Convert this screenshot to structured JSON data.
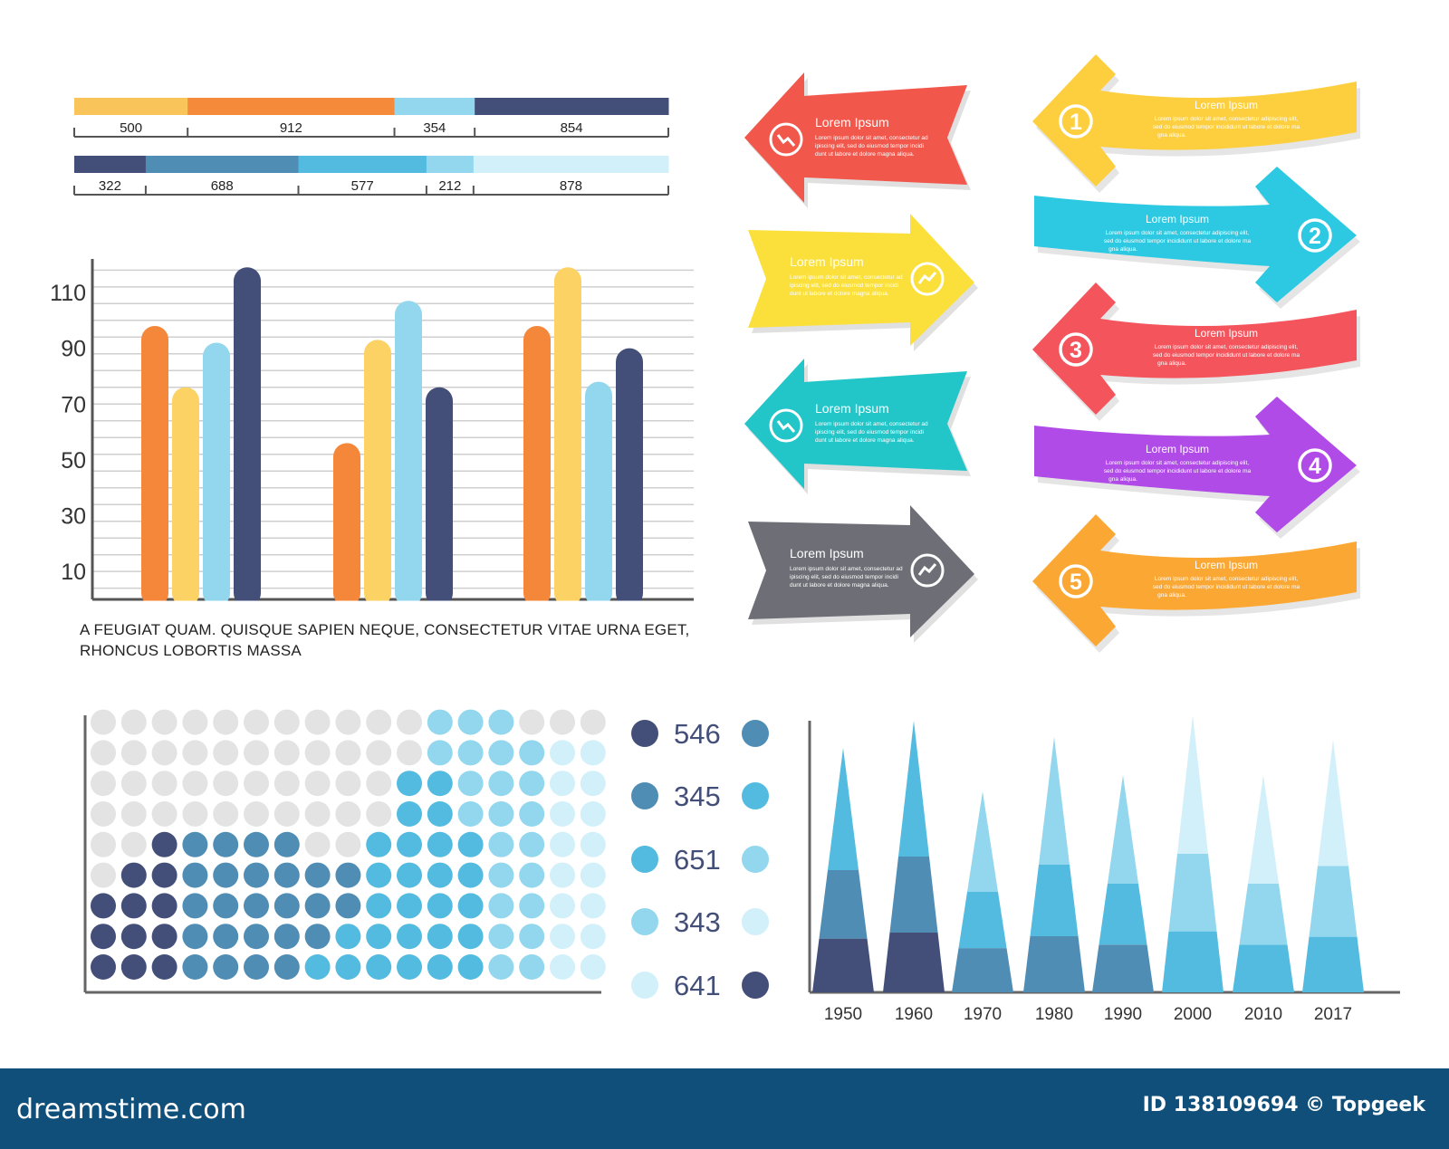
{
  "caption": "A FEUGIAT QUAM. QUISQUE SAPIEN NEQUE, CONSECTETUR VITAE URNA EGET, RHONCUS LOBORTIS MASSA",
  "footer": {
    "logo": "dreamstime.com",
    "id_text": "ID 138109694 © Topgeek"
  },
  "colors": {
    "orange": "#f5873a",
    "yellow": "#fdd264",
    "light_blue": "#93d7ee",
    "navy": "#434f78",
    "mid_blue": "#4f8db5",
    "sky": "#53bbe0",
    "pale": "#d2f0fa",
    "gray_dot": "#e3e3e3"
  },
  "chart_data": [
    {
      "type": "bar",
      "subtype": "stacked-horizontal",
      "values": [
        500,
        912,
        354,
        854
      ],
      "colors": [
        "#f9c45a",
        "#f58a3b",
        "#93d7ee",
        "#434f78"
      ],
      "labels": [
        "500",
        "912",
        "354",
        "854"
      ]
    },
    {
      "type": "bar",
      "subtype": "stacked-horizontal",
      "values": [
        322,
        688,
        577,
        212,
        878
      ],
      "colors": [
        "#434f78",
        "#4f8db5",
        "#53bbe0",
        "#93d7ee",
        "#d2f0fa"
      ],
      "labels": [
        "322",
        "688",
        "577",
        "212",
        "878"
      ]
    },
    {
      "type": "bar",
      "ylim": [
        0,
        122
      ],
      "yticks": [
        10,
        30,
        50,
        70,
        90,
        110
      ],
      "grid": true,
      "groups": [
        {
          "values": [
            98,
            76,
            92,
            119
          ]
        },
        {
          "values": [
            56,
            93,
            107,
            76
          ]
        },
        {
          "values": [
            98,
            119,
            78,
            90
          ]
        }
      ],
      "colors": [
        "#f5873a",
        "#fdd264",
        "#93d7ee",
        "#434f78"
      ]
    },
    {
      "type": "dot-matrix",
      "columns": [
        3,
        4,
        5,
        5,
        5,
        5,
        5,
        4,
        4,
        5,
        7,
        9,
        9,
        9,
        8,
        8,
        8
      ],
      "rows": 9,
      "legend": [
        {
          "value": "546",
          "left": "#434f78",
          "right": "#4f8db5"
        },
        {
          "value": "345",
          "left": "#4f8db5",
          "right": "#53bbe0"
        },
        {
          "value": "651",
          "left": "#53bbe0",
          "right": "#93d7ee"
        },
        {
          "value": "343",
          "left": "#93d7ee",
          "right": "#d2f0fa"
        },
        {
          "value": "641",
          "left": "#d2f0fa",
          "right": "#434f78"
        }
      ]
    },
    {
      "type": "area",
      "subtype": "stacked-triangles",
      "categories": [
        "1950",
        "1960",
        "1970",
        "1980",
        "1990",
        "2000",
        "2010",
        "2017"
      ],
      "heights": [
        0.9,
        1.0,
        0.74,
        0.94,
        0.8,
        1.02,
        0.8,
        0.93
      ],
      "bands": [
        [
          "#434f78",
          "#4f8db5",
          "#53bbe0"
        ],
        [
          "#434f78",
          "#4f8db5",
          "#53bbe0"
        ],
        [
          "#4f8db5",
          "#53bbe0",
          "#93d7ee"
        ],
        [
          "#4f8db5",
          "#53bbe0",
          "#93d7ee"
        ],
        [
          "#4f8db5",
          "#53bbe0",
          "#93d7ee"
        ],
        [
          "#53bbe0",
          "#93d7ee",
          "#d2f0fa"
        ],
        [
          "#53bbe0",
          "#93d7ee",
          "#d2f0fa"
        ],
        [
          "#53bbe0",
          "#93d7ee",
          "#d2f0fa"
        ]
      ]
    }
  ],
  "arrows": {
    "title": "Lorem Ipsum",
    "body": "Lorem ipsum dolor sit amet, consectetur adipiscing elit, sed do eiusmod tempor incididunt ut labore et dolore magna aliqua.",
    "left_column": [
      {
        "direction": "left",
        "color": "#f2574c",
        "icon": "trend-down-icon"
      },
      {
        "direction": "right",
        "color": "#fbe03c",
        "icon": "trend-up-icon"
      },
      {
        "direction": "left",
        "color": "#22c6c9",
        "icon": "trend-down-icon"
      },
      {
        "direction": "right",
        "color": "#6e6f76",
        "icon": "trend-up-icon"
      }
    ],
    "right_column": [
      {
        "number": "1",
        "direction": "left",
        "color": "#fdcf3e"
      },
      {
        "number": "2",
        "direction": "right",
        "color": "#2dc9e2"
      },
      {
        "number": "3",
        "direction": "left",
        "color": "#f4555d"
      },
      {
        "number": "4",
        "direction": "right",
        "color": "#b04be8"
      },
      {
        "number": "5",
        "direction": "left",
        "color": "#fba733"
      }
    ]
  }
}
